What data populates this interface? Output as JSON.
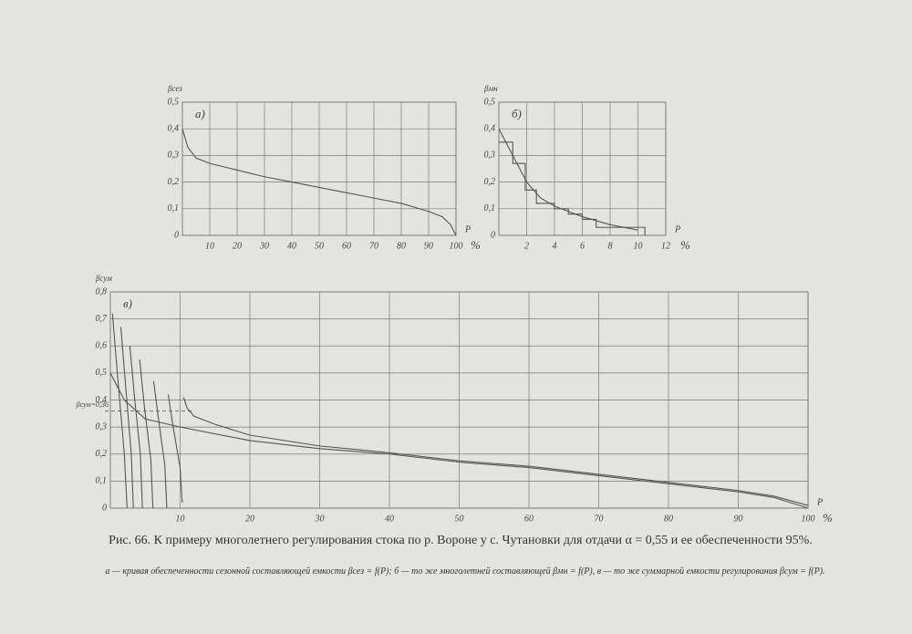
{
  "chart_data": [
    {
      "type": "line",
      "panel": "а)",
      "y_label": "βсез",
      "x_label": "P",
      "x_unit": "%",
      "xlim": [
        0,
        100
      ],
      "xticks": [
        10,
        20,
        30,
        40,
        50,
        60,
        70,
        80,
        90,
        100
      ],
      "ylim": [
        0,
        0.5
      ],
      "yticks": [
        0,
        {
          "value": 0.1,
          "label": "0,1"
        },
        {
          "value": 0.2,
          "label": "0,2"
        },
        {
          "value": 0.3,
          "label": "0,3"
        },
        {
          "value": 0.4,
          "label": "0,4"
        },
        {
          "value": 0.5,
          "label": "0,5"
        }
      ],
      "grid": true,
      "series": [
        {
          "color": "#555555",
          "x": [
            0,
            2,
            5,
            10,
            20,
            30,
            40,
            50,
            60,
            70,
            80,
            90,
            95,
            98,
            100
          ],
          "y": [
            0.4,
            0.33,
            0.29,
            0.27,
            0.245,
            0.22,
            0.2,
            0.18,
            0.16,
            0.14,
            0.12,
            0.09,
            0.07,
            0.04,
            0
          ]
        }
      ]
    },
    {
      "type": "line",
      "panel": "б)",
      "y_label": "βмн",
      "x_label": "P",
      "x_unit": "%",
      "xlim": [
        0,
        12
      ],
      "xticks": [
        2,
        4,
        6,
        8,
        10,
        12
      ],
      "ylim": [
        0,
        0.5
      ],
      "yticks": [
        0,
        {
          "value": 0.1,
          "label": "0,1"
        },
        {
          "value": 0.2,
          "label": "0,2"
        },
        {
          "value": 0.3,
          "label": "0,3"
        },
        {
          "value": 0.4,
          "label": "0,4"
        },
        {
          "value": 0.5,
          "label": "0,5"
        }
      ],
      "grid": true,
      "series": [
        {
          "color": "#555555",
          "x": [
            0,
            1,
            2,
            3,
            4,
            5,
            6,
            8,
            10
          ],
          "y": [
            0.4,
            0.3,
            0.2,
            0.14,
            0.11,
            0.09,
            0.07,
            0.04,
            0.02
          ]
        },
        {
          "color": "#555555",
          "x": [
            0,
            1,
            1,
            1.9,
            1.9,
            2.7,
            2.7,
            4,
            4,
            5,
            5,
            6,
            6,
            7,
            7,
            10.5,
            10.5
          ],
          "y": [
            0.35,
            0.35,
            0.27,
            0.27,
            0.17,
            0.17,
            0.12,
            0.12,
            0.1,
            0.1,
            0.08,
            0.08,
            0.06,
            0.06,
            0.03,
            0.03,
            0
          ]
        }
      ]
    },
    {
      "type": "line",
      "panel": "в)",
      "y_label": "βсум",
      "x_label": "P",
      "x_unit": "%",
      "xlim": [
        0,
        100
      ],
      "xticks": [
        10,
        20,
        30,
        40,
        50,
        60,
        70,
        80,
        90,
        100
      ],
      "ylim": [
        0,
        0.8
      ],
      "yticks": [
        0,
        {
          "value": 0.1,
          "label": "0,1"
        },
        {
          "value": 0.2,
          "label": "0,2"
        },
        {
          "value": 0.3,
          "label": "0,3"
        },
        {
          "value": 0.4,
          "label": "0,4"
        },
        {
          "value": 0.5,
          "label": "0,5"
        },
        {
          "value": 0.6,
          "label": "0,6"
        },
        {
          "value": 0.7,
          "label": "0,7"
        },
        {
          "value": 0.8,
          "label": "0,8"
        }
      ],
      "grid": true,
      "annotation": {
        "text": "βсум=0,36",
        "y": 0.36
      },
      "series": [
        {
          "color": "#555555",
          "x": [
            0,
            2,
            5,
            10,
            20,
            30,
            40,
            50,
            60,
            70,
            80,
            90,
            95,
            100
          ],
          "y": [
            0.5,
            0.4,
            0.33,
            0.3,
            0.25,
            0.22,
            0.2,
            0.17,
            0.15,
            0.12,
            0.09,
            0.06,
            0.04,
            0
          ]
        },
        {
          "color": "#555555",
          "x": [
            10.5,
            11,
            12,
            15,
            20,
            30,
            40,
            50,
            60,
            70,
            80,
            90,
            95,
            100
          ],
          "y": [
            0.41,
            0.37,
            0.34,
            0.31,
            0.27,
            0.23,
            0.205,
            0.175,
            0.155,
            0.125,
            0.095,
            0.065,
            0.045,
            0.01
          ]
        },
        {
          "color": "#555555",
          "x": [
            0.3,
            1.0,
            2.0,
            2.4
          ],
          "y": [
            0.72,
            0.5,
            0.2,
            0
          ]
        },
        {
          "color": "#555555",
          "x": [
            1.5,
            2.2,
            3.0,
            3.3
          ],
          "y": [
            0.67,
            0.45,
            0.2,
            0
          ]
        },
        {
          "color": "#555555",
          "x": [
            2.8,
            3.5,
            4.3,
            4.6
          ],
          "y": [
            0.6,
            0.4,
            0.2,
            0
          ]
        },
        {
          "color": "#555555",
          "x": [
            4.2,
            4.9,
            5.8,
            6.1
          ],
          "y": [
            0.55,
            0.37,
            0.18,
            0
          ]
        },
        {
          "color": "#555555",
          "x": [
            6.2,
            6.9,
            7.8,
            8.1
          ],
          "y": [
            0.47,
            0.33,
            0.16,
            0
          ]
        },
        {
          "color": "#555555",
          "x": [
            8.3,
            9.0,
            10.0,
            10.3
          ],
          "y": [
            0.42,
            0.3,
            0.15,
            0.02
          ]
        }
      ]
    }
  ],
  "caption": {
    "title": "Рис. 66. К примеру многолетнего регулирования стока по р. Вороне у с. Чутановки для отдачи α = 0,55 и ее обеспеченности 95%.",
    "legend": "а — кривая обеспеченности сезонной составляющей емкости βсез = f(P); б — то же многолетней составляющей βмн = f(P), в — то же суммарной емкости регулирования βсум = f(P)."
  }
}
